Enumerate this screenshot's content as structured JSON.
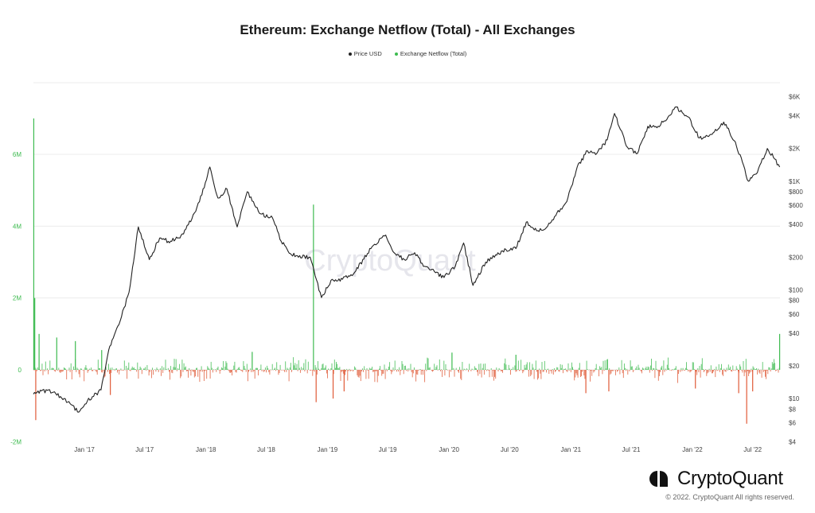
{
  "header": {
    "title": "Ethereum: Exchange Netflow (Total) - All Exchanges"
  },
  "legend": {
    "items": [
      {
        "label": "Price USD",
        "color": "#222222"
      },
      {
        "label": "Exchange Netflow (Total)",
        "color": "#3dbb4f"
      }
    ]
  },
  "brand": {
    "name": "CryptoQuant",
    "copyright": "© 2022. CryptoQuant All rights reserved."
  },
  "watermark": "CryptoQuant",
  "chart_data": {
    "type": "line",
    "title": "Ethereum: Exchange Netflow (Total) - All Exchanges",
    "x_ticks": [
      "Jan '17",
      "Jul '17",
      "Jan '18",
      "Jul '18",
      "Jan '19",
      "Jul '19",
      "Jan '20",
      "Jul '20",
      "Jan '21",
      "Jul '21",
      "Jan '22",
      "Jul '22"
    ],
    "y_left": {
      "ticks": [
        "6M",
        "4M",
        "2M",
        "0",
        "-2M"
      ],
      "range": [
        -2000000,
        7000000
      ],
      "color": "#3dbb4f"
    },
    "y_right": {
      "ticks": [
        "$6K",
        "$4K",
        "$2K",
        "$1K",
        "$800",
        "$600",
        "$400",
        "$200",
        "$100",
        "$80",
        "$60",
        "$40",
        "$20",
        "$10",
        "$8",
        "$6",
        "$4"
      ],
      "scale": "log",
      "range": [
        4,
        7200
      ]
    },
    "grid": true,
    "series": [
      {
        "name": "Price USD",
        "color": "#222222",
        "axis": "right",
        "points": [
          [
            "2016-08-01",
            11
          ],
          [
            "2016-09-15",
            12
          ],
          [
            "2016-11-01",
            10
          ],
          [
            "2016-12-15",
            7.5
          ],
          [
            "2017-01-10",
            9.5
          ],
          [
            "2017-02-20",
            12
          ],
          [
            "2017-03-15",
            28
          ],
          [
            "2017-04-15",
            48
          ],
          [
            "2017-05-15",
            95
          ],
          [
            "2017-06-12",
            380
          ],
          [
            "2017-07-15",
            190
          ],
          [
            "2017-08-15",
            300
          ],
          [
            "2017-09-10",
            280
          ],
          [
            "2017-10-15",
            300
          ],
          [
            "2017-11-20",
            450
          ],
          [
            "2017-12-20",
            750
          ],
          [
            "2018-01-13",
            1350
          ],
          [
            "2018-02-06",
            700
          ],
          [
            "2018-03-05",
            850
          ],
          [
            "2018-04-05",
            380
          ],
          [
            "2018-05-05",
            800
          ],
          [
            "2018-06-15",
            500
          ],
          [
            "2018-07-20",
            460
          ],
          [
            "2018-08-15",
            280
          ],
          [
            "2018-09-15",
            210
          ],
          [
            "2018-11-10",
            200
          ],
          [
            "2018-12-14",
            85
          ],
          [
            "2019-01-15",
            125
          ],
          [
            "2019-02-15",
            125
          ],
          [
            "2019-03-20",
            140
          ],
          [
            "2019-05-15",
            250
          ],
          [
            "2019-06-25",
            320
          ],
          [
            "2019-07-20",
            220
          ],
          [
            "2019-08-20",
            190
          ],
          [
            "2019-09-20",
            220
          ],
          [
            "2019-10-20",
            165
          ],
          [
            "2019-12-17",
            130
          ],
          [
            "2020-01-20",
            165
          ],
          [
            "2020-02-14",
            270
          ],
          [
            "2020-03-13",
            110
          ],
          [
            "2020-04-20",
            180
          ],
          [
            "2020-05-20",
            210
          ],
          [
            "2020-06-20",
            235
          ],
          [
            "2020-07-20",
            240
          ],
          [
            "2020-08-20",
            420
          ],
          [
            "2020-09-20",
            350
          ],
          [
            "2020-10-20",
            375
          ],
          [
            "2020-11-20",
            510
          ],
          [
            "2020-12-20",
            650
          ],
          [
            "2021-01-20",
            1350
          ],
          [
            "2021-02-20",
            1900
          ],
          [
            "2021-03-20",
            1800
          ],
          [
            "2021-04-20",
            2400
          ],
          [
            "2021-05-12",
            4200
          ],
          [
            "2021-06-20",
            2050
          ],
          [
            "2021-07-20",
            1800
          ],
          [
            "2021-08-20",
            3200
          ],
          [
            "2021-09-20",
            3200
          ],
          [
            "2021-10-20",
            3900
          ],
          [
            "2021-11-10",
            4800
          ],
          [
            "2021-12-20",
            3900
          ],
          [
            "2022-01-22",
            2500
          ],
          [
            "2022-03-01",
            2700
          ],
          [
            "2022-04-05",
            3500
          ],
          [
            "2022-05-10",
            2300
          ],
          [
            "2022-06-18",
            1000
          ],
          [
            "2022-07-15",
            1200
          ],
          [
            "2022-08-14",
            2000
          ],
          [
            "2022-09-05",
            1600
          ],
          [
            "2022-09-20",
            1350
          ]
        ]
      },
      {
        "name": "Exchange Netflow (Total)",
        "color": "#3dbb4f",
        "negative_color": "#e05a37",
        "axis": "left",
        "note": "daily bars; baseline noise within roughly ±0.3M",
        "spikes": [
          [
            "2016-08-02",
            7000000
          ],
          [
            "2016-08-05",
            2000000
          ],
          [
            "2016-08-08",
            -1400000
          ],
          [
            "2016-08-18",
            1000000
          ],
          [
            "2016-10-10",
            900000
          ],
          [
            "2016-12-05",
            800000
          ],
          [
            "2017-02-22",
            550000
          ],
          [
            "2017-03-20",
            -700000
          ],
          [
            "2018-05-20",
            500000
          ],
          [
            "2018-11-20",
            4600000
          ],
          [
            "2018-11-28",
            -900000
          ],
          [
            "2019-01-18",
            -800000
          ],
          [
            "2019-02-20",
            -600000
          ],
          [
            "2020-01-10",
            480000
          ],
          [
            "2020-07-20",
            420000
          ],
          [
            "2021-02-15",
            -650000
          ],
          [
            "2021-04-25",
            -600000
          ],
          [
            "2022-01-10",
            -520000
          ],
          [
            "2022-05-20",
            -650000
          ],
          [
            "2022-06-13",
            -1500000
          ],
          [
            "2022-07-01",
            -600000
          ],
          [
            "2022-09-20",
            1000000
          ]
        ]
      }
    ]
  }
}
